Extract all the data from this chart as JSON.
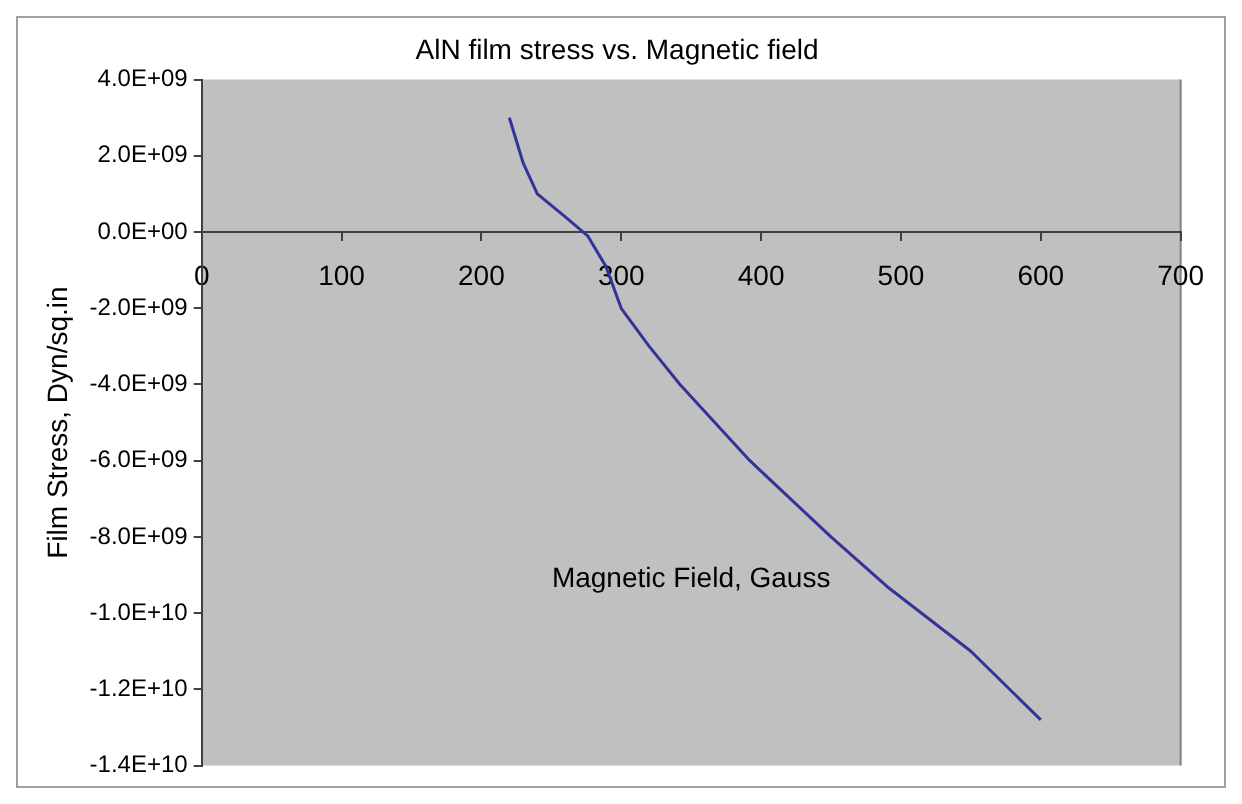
{
  "chart_data": {
    "type": "line",
    "title": "AlN film stress vs. Magnetic field",
    "xlabel": "Magnetic Field, Gauss",
    "ylabel": "Film Stress, Dyn/sq.in",
    "series": [
      {
        "color": "#333399",
        "x": [
          220,
          230,
          240,
          260,
          276,
          289,
          300,
          320,
          342,
          392,
          450,
          490,
          550,
          600
        ],
        "values": [
          3000000000,
          1800000000,
          1000000000,
          400000000,
          -100000000,
          -900000000,
          -2000000000,
          -3000000000,
          -4000000000,
          -6000000000,
          -8000000000,
          -9300000000,
          -11000000000,
          -12800000000
        ]
      }
    ],
    "xlim": [
      0,
      700
    ],
    "xticks": [
      0,
      100,
      200,
      300,
      400,
      500,
      600,
      700
    ],
    "ylim": [
      -14000000000,
      4000000000
    ],
    "yticks": [
      {
        "value": 4000000000,
        "label": "4.0E+09"
      },
      {
        "value": 2000000000,
        "label": "2.0E+09"
      },
      {
        "value": 0,
        "label": "0.0E+00"
      },
      {
        "value": -2000000000,
        "label": "-2.0E+09"
      },
      {
        "value": -4000000000,
        "label": "-4.0E+09"
      },
      {
        "value": -6000000000,
        "label": "-6.0E+09"
      },
      {
        "value": -8000000000,
        "label": "-8.0E+09"
      },
      {
        "value": -10000000000,
        "label": "-1.0E+10"
      },
      {
        "value": -12000000000,
        "label": "-1.2E+10"
      },
      {
        "value": -14000000000,
        "label": "-1.4E+10"
      }
    ],
    "legend": false,
    "marker": "none",
    "line_style": "solid"
  }
}
